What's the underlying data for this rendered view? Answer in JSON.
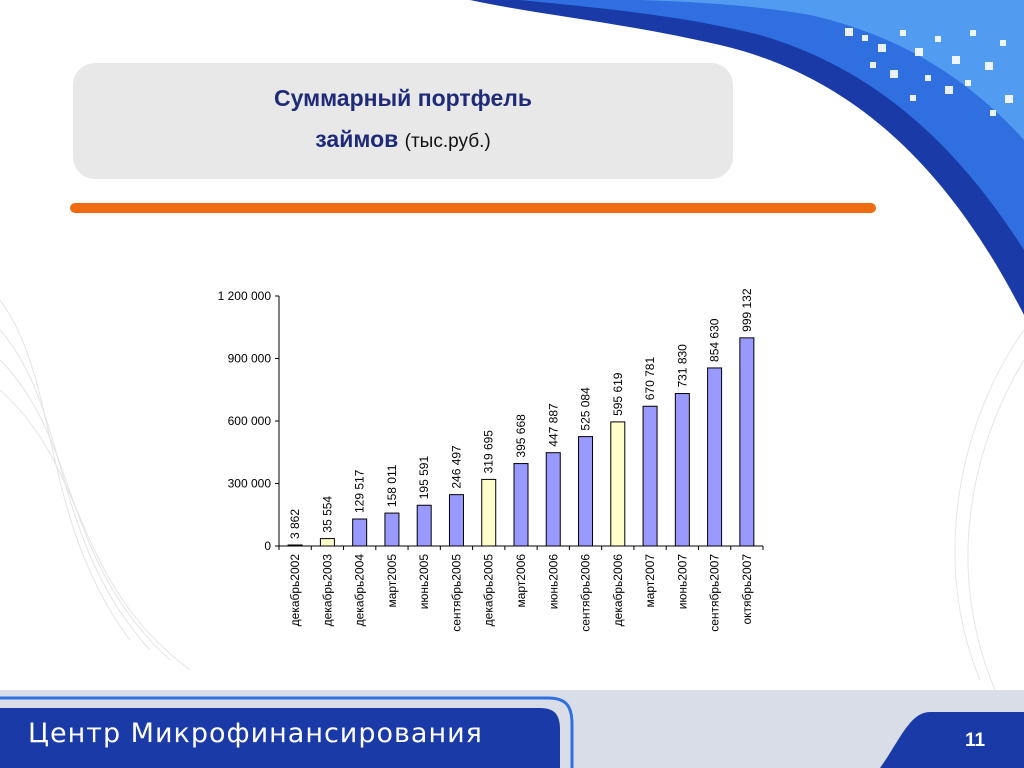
{
  "slide": {
    "title_line1": "Суммарный портфель",
    "title_line2_bold": "займов",
    "title_line2_unit": "(тыс.руб.)",
    "footer_text": "Центр Микрофинансирования",
    "page_number": "11"
  },
  "colors": {
    "title": "#1f2a78",
    "accent_orange": "#f06a10",
    "bar_blue": "#9999ff",
    "bar_yellow": "#ffffcc",
    "footer_blue": "#1a3aa8"
  },
  "chart_data": {
    "type": "bar",
    "categories": [
      "декабрь2002",
      "декабрь2003",
      "декабрь2004",
      "март2005",
      "июнь2005",
      "сентябрь2005",
      "декабрь2005",
      "март2006",
      "июнь2006",
      "сентябрь2006",
      "декабрь2006",
      "март2007",
      "июнь2007",
      "сентябрь2007",
      "октябрь2007"
    ],
    "values": [
      3862,
      35554,
      129517,
      158011,
      195591,
      246497,
      319695,
      395668,
      447887,
      525084,
      595619,
      670781,
      731830,
      854630,
      999132
    ],
    "value_labels": [
      "3 862",
      "35 554",
      "129 517",
      "158 011",
      "195 591",
      "246 497",
      "319 695",
      "395 668",
      "447 887",
      "525 084",
      "595 619",
      "670 781",
      "731 830",
      "854 630",
      "999 132"
    ],
    "highlight": [
      false,
      true,
      false,
      false,
      false,
      false,
      true,
      false,
      false,
      false,
      true,
      false,
      false,
      false,
      false
    ],
    "ylim": [
      0,
      1200000
    ],
    "yticks": [
      0,
      300000,
      600000,
      900000,
      1200000
    ],
    "ytick_labels": [
      "0",
      "300 000",
      "600 000",
      "900 000",
      "1 200 000"
    ],
    "grid": false,
    "legend": "none"
  }
}
